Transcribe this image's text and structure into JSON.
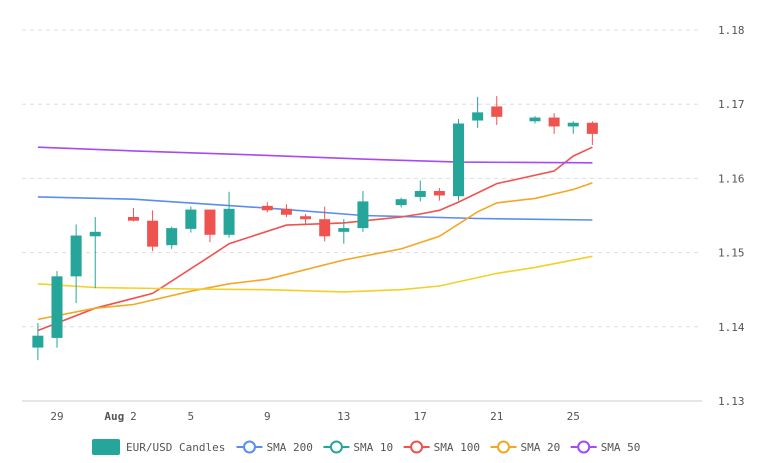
{
  "chart_data": {
    "type": "candlestick",
    "y_ticks": [
      1.13,
      1.14,
      1.15,
      1.16,
      1.17,
      1.18
    ],
    "x_ticks": [
      {
        "day": 29,
        "label": "29",
        "bold": false
      },
      {
        "day": 32,
        "label": "Aug",
        "bold": true
      },
      {
        "day": 33,
        "label": "2",
        "bold": false
      },
      {
        "day": 36,
        "label": "5",
        "bold": false
      },
      {
        "day": 40,
        "label": "9",
        "bold": false
      },
      {
        "day": 44,
        "label": "13",
        "bold": false
      },
      {
        "day": 48,
        "label": "17",
        "bold": false
      },
      {
        "day": 52,
        "label": "21",
        "bold": false
      },
      {
        "day": 56,
        "label": "25",
        "bold": false
      }
    ],
    "ylim": [
      1.13,
      1.18
    ],
    "grid": true,
    "legend_position": "bottom",
    "colors": {
      "up": "#26a69a",
      "down": "#ef5350"
    },
    "candles": [
      {
        "date": "2025-07-28",
        "open": 1.1372,
        "high": 1.1405,
        "low": 1.1355,
        "close": 1.1388
      },
      {
        "date": "2025-07-29",
        "open": 1.1385,
        "high": 1.1475,
        "low": 1.1372,
        "close": 1.1468
      },
      {
        "date": "2025-07-30",
        "open": 1.1468,
        "high": 1.1538,
        "low": 1.1432,
        "close": 1.1523
      },
      {
        "date": "2025-07-31",
        "open": 1.1522,
        "high": 1.1548,
        "low": 1.1452,
        "close": 1.1528
      },
      {
        "date": "2025-08-02",
        "open": 1.1548,
        "high": 1.156,
        "low": 1.1542,
        "close": 1.1543
      },
      {
        "date": "2025-08-03",
        "open": 1.1543,
        "high": 1.1557,
        "low": 1.1502,
        "close": 1.1508
      },
      {
        "date": "2025-08-04",
        "open": 1.151,
        "high": 1.1535,
        "low": 1.1505,
        "close": 1.1533
      },
      {
        "date": "2025-08-05",
        "open": 1.1532,
        "high": 1.1562,
        "low": 1.1527,
        "close": 1.1558
      },
      {
        "date": "2025-08-06",
        "open": 1.1558,
        "high": 1.1558,
        "low": 1.1514,
        "close": 1.1524
      },
      {
        "date": "2025-08-07",
        "open": 1.1524,
        "high": 1.1582,
        "low": 1.152,
        "close": 1.1559
      },
      {
        "date": "2025-08-09",
        "open": 1.1563,
        "high": 1.1568,
        "low": 1.1554,
        "close": 1.1557
      },
      {
        "date": "2025-08-10",
        "open": 1.1559,
        "high": 1.1565,
        "low": 1.1548,
        "close": 1.1551
      },
      {
        "date": "2025-08-11",
        "open": 1.1549,
        "high": 1.1552,
        "low": 1.1538,
        "close": 1.1545
      },
      {
        "date": "2025-08-12",
        "open": 1.1545,
        "high": 1.1562,
        "low": 1.1515,
        "close": 1.1522
      },
      {
        "date": "2025-08-13",
        "open": 1.1528,
        "high": 1.1545,
        "low": 1.1512,
        "close": 1.1533
      },
      {
        "date": "2025-08-14",
        "open": 1.1533,
        "high": 1.1583,
        "low": 1.1528,
        "close": 1.1569
      },
      {
        "date": "2025-08-16",
        "open": 1.1564,
        "high": 1.1574,
        "low": 1.1561,
        "close": 1.1572
      },
      {
        "date": "2025-08-17",
        "open": 1.1575,
        "high": 1.1597,
        "low": 1.1569,
        "close": 1.1583
      },
      {
        "date": "2025-08-18",
        "open": 1.1583,
        "high": 1.1587,
        "low": 1.157,
        "close": 1.1577
      },
      {
        "date": "2025-08-19",
        "open": 1.1576,
        "high": 1.168,
        "low": 1.157,
        "close": 1.1674
      },
      {
        "date": "2025-08-20",
        "open": 1.1678,
        "high": 1.171,
        "low": 1.1668,
        "close": 1.1689
      },
      {
        "date": "2025-08-21",
        "open": 1.1697,
        "high": 1.1711,
        "low": 1.1672,
        "close": 1.1683
      },
      {
        "date": "2025-08-23",
        "open": 1.1677,
        "high": 1.1684,
        "low": 1.1674,
        "close": 1.1682
      },
      {
        "date": "2025-08-24",
        "open": 1.1682,
        "high": 1.1688,
        "low": 1.166,
        "close": 1.167
      },
      {
        "date": "2025-08-25",
        "open": 1.167,
        "high": 1.1677,
        "low": 1.166,
        "close": 1.1675
      },
      {
        "date": "2025-08-26",
        "open": 1.1675,
        "high": 1.1677,
        "low": 1.1645,
        "close": 1.166
      }
    ],
    "series": [
      {
        "name": "SMA 200",
        "color": "#5b8def",
        "x": [
          "2025-07-28",
          "2025-08-02",
          "2025-08-09",
          "2025-08-14",
          "2025-08-20",
          "2025-08-26"
        ],
        "values": [
          1.1575,
          1.1572,
          1.156,
          1.155,
          1.1546,
          1.1544
        ]
      },
      {
        "name": "SMA 10",
        "color": "#26a69a",
        "x": [],
        "values": []
      },
      {
        "name": "SMA 100",
        "color": "#ef5350",
        "x": [
          "2025-07-28",
          "2025-07-31",
          "2025-08-03",
          "2025-08-06",
          "2025-08-07",
          "2025-08-10",
          "2025-08-13",
          "2025-08-16",
          "2025-08-17",
          "2025-08-18",
          "2025-08-19",
          "2025-08-21",
          "2025-08-24",
          "2025-08-25",
          "2025-08-26"
        ],
        "values": [
          1.1395,
          1.1425,
          1.1445,
          1.1495,
          1.1512,
          1.1537,
          1.154,
          1.1548,
          1.1552,
          1.1557,
          1.1568,
          1.1593,
          1.161,
          1.163,
          1.1642
        ]
      },
      {
        "name": "SMA 20",
        "color": "#f5a623",
        "x": [
          "2025-07-28",
          "2025-07-31",
          "2025-08-02",
          "2025-08-05",
          "2025-08-07",
          "2025-08-09",
          "2025-08-13",
          "2025-08-16",
          "2025-08-18",
          "2025-08-20",
          "2025-08-21",
          "2025-08-23",
          "2025-08-25",
          "2025-08-26"
        ],
        "values": [
          1.141,
          1.1425,
          1.143,
          1.1448,
          1.1458,
          1.1464,
          1.149,
          1.1505,
          1.1522,
          1.1555,
          1.1567,
          1.1573,
          1.1585,
          1.1594
        ]
      },
      {
        "name": "SMA 50",
        "color": "#a64bf4",
        "x": [
          "2025-07-28",
          "2025-08-02",
          "2025-08-09",
          "2025-08-14",
          "2025-08-19",
          "2025-08-26"
        ],
        "values": [
          1.1642,
          1.1637,
          1.1631,
          1.1626,
          1.1622,
          1.1621
        ]
      },
      {
        "name": "",
        "color": "#f2d029",
        "x": [
          "2025-07-28",
          "2025-07-31",
          "2025-08-05",
          "2025-08-09",
          "2025-08-13",
          "2025-08-16",
          "2025-08-18",
          "2025-08-21",
          "2025-08-23",
          "2025-08-26"
        ],
        "values": [
          1.1458,
          1.1453,
          1.1451,
          1.145,
          1.1447,
          1.145,
          1.1455,
          1.1472,
          1.148,
          1.1495
        ]
      }
    ],
    "legend": [
      {
        "label": "EUR/USD Candles",
        "kind": "candle",
        "color": "#26a69a"
      },
      {
        "label": "SMA 200",
        "kind": "line",
        "color": "#5b8def"
      },
      {
        "label": "SMA 10",
        "kind": "line",
        "color": "#26a69a"
      },
      {
        "label": "SMA 100",
        "kind": "line",
        "color": "#ef5350"
      },
      {
        "label": "SMA 20",
        "kind": "line",
        "color": "#f5a623"
      },
      {
        "label": "SMA 50",
        "kind": "line",
        "color": "#a64bf4"
      }
    ]
  }
}
